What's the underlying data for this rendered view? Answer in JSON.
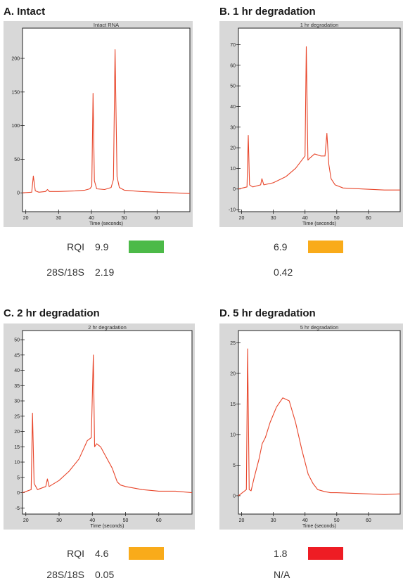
{
  "panels": [
    {
      "title": "A. Intact",
      "rqi": "9.9",
      "ratio": "2.19",
      "status_color": "#4cba48"
    },
    {
      "title": "B. 1 hr degradation",
      "rqi": "6.9",
      "ratio": "0.42",
      "status_color": "#f9ab1a"
    },
    {
      "title": "C. 2 hr degradation",
      "rqi": "4.6",
      "ratio": "0.05",
      "status_color": "#f9ab1a"
    },
    {
      "title": "D. 5 hr degradation",
      "rqi": "1.8",
      "ratio": "N/A",
      "status_color": "#ee1c24"
    }
  ],
  "row_labels": {
    "rqi": "RQI",
    "ratio": "28S/18S"
  },
  "chart_data": [
    {
      "type": "line",
      "title": "Intact RNA",
      "xlabel": "Time (seconds)",
      "xlim": [
        19,
        70
      ],
      "ylim": [
        -28,
        245
      ],
      "xticks": [
        20,
        30,
        40,
        50,
        60
      ],
      "yticks": [
        0,
        50,
        100,
        150,
        200
      ],
      "line_color": "#e8452a",
      "series": [
        {
          "x": [
            19,
            21.8,
            22.3,
            22.9,
            24,
            26,
            26.6,
            27.2,
            30,
            35,
            38,
            39.5,
            40.1,
            40.5,
            40.9,
            41.6,
            44,
            46,
            46.7,
            47.2,
            47.8,
            48.5,
            50,
            55,
            60,
            65,
            70
          ],
          "y": [
            0,
            1,
            25,
            3,
            1,
            2,
            5,
            2,
            2,
            3,
            4,
            6,
            10,
            148,
            18,
            6,
            5,
            8,
            20,
            213,
            24,
            8,
            4,
            2,
            1,
            0,
            -1
          ]
        }
      ]
    },
    {
      "type": "line",
      "title": "1 hr degradation",
      "xlabel": "Time (seconds)",
      "xlim": [
        19,
        70
      ],
      "ylim": [
        -11,
        78
      ],
      "xticks": [
        20,
        30,
        40,
        50,
        60
      ],
      "yticks": [
        -10,
        0,
        10,
        20,
        30,
        40,
        50,
        60,
        70
      ],
      "line_color": "#e8452a",
      "series": [
        {
          "x": [
            19,
            21.7,
            22.1,
            22.5,
            23.5,
            26,
            26.4,
            27,
            30,
            34,
            37,
            39,
            40,
            40.4,
            40.9,
            41.5,
            43,
            45,
            46.3,
            46.9,
            47.5,
            48.2,
            49.5,
            52,
            58,
            65,
            70
          ],
          "y": [
            0,
            1,
            26,
            2,
            1,
            2,
            5,
            2,
            3,
            6,
            10,
            14,
            16,
            69,
            14,
            15,
            17,
            16,
            16,
            27,
            12,
            5,
            2,
            0.5,
            0,
            -0.5,
            -0.5
          ]
        }
      ]
    },
    {
      "type": "line",
      "title": "2 hr degradation",
      "xlabel": "Time (seconds)",
      "xlim": [
        19,
        70
      ],
      "ylim": [
        -7,
        53
      ],
      "xticks": [
        20,
        30,
        40,
        50,
        60
      ],
      "yticks": [
        -5,
        0,
        5,
        10,
        15,
        20,
        25,
        30,
        35,
        40,
        45,
        50
      ],
      "line_color": "#e8452a",
      "series": [
        {
          "x": [
            19,
            21.6,
            22,
            22.5,
            23.5,
            26,
            26.5,
            27,
            30,
            33,
            36,
            38.5,
            39.7,
            40.3,
            40.7,
            41.3,
            42.5,
            44,
            46,
            47.5,
            48.5,
            50,
            55,
            60,
            65,
            70
          ],
          "y": [
            0,
            1,
            26,
            3,
            1,
            2,
            4.5,
            2,
            4,
            7,
            11,
            17,
            18,
            45,
            15,
            16,
            15,
            12,
            8,
            3.5,
            2.5,
            2,
            1,
            0.5,
            0.5,
            0
          ]
        }
      ]
    },
    {
      "type": "line",
      "title": "5 hr degradation",
      "xlabel": "Time (seconds)",
      "xlim": [
        19,
        70
      ],
      "ylim": [
        -3,
        27
      ],
      "xticks": [
        20,
        30,
        40,
        50,
        60
      ],
      "yticks": [
        0,
        5,
        10,
        15,
        20,
        25
      ],
      "line_color": "#e8452a",
      "series": [
        {
          "x": [
            19,
            21.5,
            21.9,
            22.4,
            23,
            24,
            25.5,
            26.5,
            27.5,
            29,
            31,
            33,
            35,
            37,
            39,
            41,
            42.5,
            44,
            46,
            48,
            50,
            55,
            60,
            65,
            70
          ],
          "y": [
            0,
            1,
            24,
            1,
            0.8,
            3,
            6,
            8.5,
            9.5,
            12,
            14.5,
            16,
            15.5,
            12,
            7.5,
            3.5,
            2,
            1,
            0.7,
            0.5,
            0.5,
            0.4,
            0.3,
            0.2,
            0.3
          ]
        }
      ]
    }
  ]
}
